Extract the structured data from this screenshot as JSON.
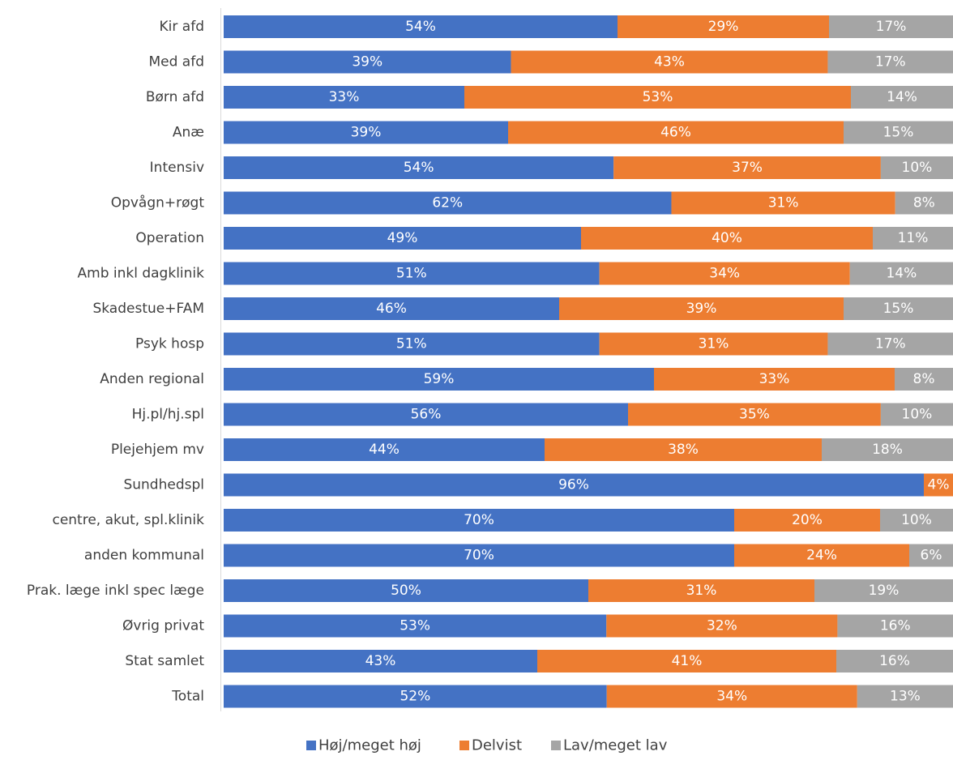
{
  "chart_data": {
    "type": "bar",
    "orientation": "horizontal",
    "stacked": "percent",
    "categories": [
      "Kir afd",
      "Med afd",
      "Børn afd",
      "Anæ",
      "Intensiv",
      "Opvågn+røgt",
      "Operation",
      "Amb inkl dagklinik",
      "Skadestue+FAM",
      "Psyk hosp",
      "Anden regional",
      "Hj.pl/hj.spl",
      "Plejehjem mv",
      "Sundhedspl",
      "centre, akut, spl.klinik",
      "anden kommunal",
      "Prak. læge inkl spec læge",
      "Øvrig privat",
      "Stat samlet",
      "Total"
    ],
    "series": [
      {
        "name": "Høj/meget høj",
        "color": "#4472c4",
        "values": [
          54,
          39,
          33,
          39,
          54,
          62,
          49,
          51,
          46,
          51,
          59,
          56,
          44,
          96,
          70,
          70,
          50,
          53,
          43,
          52
        ],
        "labels": [
          "54%",
          "39%",
          "33%",
          "39%",
          "54%",
          "62%",
          "49%",
          "51%",
          "46%",
          "51%",
          "59%",
          "56%",
          "44%",
          "96%",
          "70%",
          "70%",
          "50%",
          "53%",
          "43%",
          "52%"
        ]
      },
      {
        "name": "Delvist",
        "color": "#ed7d31",
        "values": [
          29,
          43,
          53,
          46,
          37,
          31,
          40,
          34,
          39,
          31,
          33,
          35,
          38,
          4,
          20,
          24,
          31,
          32,
          41,
          34
        ],
        "labels": [
          "29%",
          "43%",
          "53%",
          "46%",
          "37%",
          "31%",
          "40%",
          "34%",
          "39%",
          "31%",
          "33%",
          "35%",
          "38%",
          "4%",
          "20%",
          "24%",
          "31%",
          "32%",
          "41%",
          "34%"
        ]
      },
      {
        "name": "Lav/meget lav",
        "color": "#a5a5a5",
        "values": [
          17,
          17,
          14,
          15,
          10,
          8,
          11,
          14,
          15,
          17,
          8,
          10,
          18,
          0,
          10,
          6,
          19,
          16,
          16,
          13
        ],
        "labels": [
          "17%",
          "17%",
          "14%",
          "15%",
          "10%",
          "8%",
          "11%",
          "14%",
          "15%",
          "17%",
          "8%",
          "10%",
          "18%",
          "",
          "10%",
          "6%",
          "19%",
          "16%",
          "16%",
          "13%"
        ]
      }
    ],
    "xlim": [
      0,
      100
    ],
    "legend": "bottom",
    "grid": false,
    "title": "",
    "xlabel": "",
    "ylabel": ""
  }
}
